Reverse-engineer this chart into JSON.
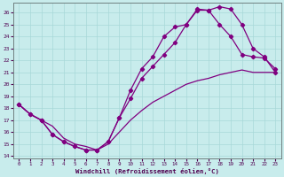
{
  "xlabel": "Windchill (Refroidissement éolien,°C)",
  "bg_color": "#c8ecec",
  "grid_color": "#a8d8d8",
  "line_color": "#800080",
  "xlim": [
    -0.5,
    23.5
  ],
  "ylim": [
    13.8,
    26.8
  ],
  "yticks": [
    14,
    15,
    16,
    17,
    18,
    19,
    20,
    21,
    22,
    23,
    24,
    25,
    26
  ],
  "xticks": [
    0,
    1,
    2,
    3,
    4,
    5,
    6,
    7,
    8,
    9,
    10,
    11,
    12,
    13,
    14,
    15,
    16,
    17,
    18,
    19,
    20,
    21,
    22,
    23
  ],
  "curve1_x": [
    0,
    1,
    2,
    3,
    4,
    5,
    6,
    7,
    8,
    9,
    10,
    11,
    12,
    13,
    14,
    15,
    16,
    17,
    18,
    19,
    20,
    21,
    22,
    23
  ],
  "curve1_y": [
    18.3,
    17.5,
    17.0,
    16.5,
    15.5,
    15.0,
    14.8,
    14.5,
    15.0,
    16.0,
    17.0,
    17.8,
    18.5,
    19.0,
    19.5,
    20.0,
    20.3,
    20.5,
    20.8,
    21.0,
    21.2,
    21.0,
    21.0,
    21.0
  ],
  "curve2_x": [
    0,
    1,
    2,
    3,
    4,
    5,
    6,
    7,
    8,
    9,
    10,
    11,
    12,
    13,
    14,
    15,
    16,
    17,
    18,
    19,
    20,
    21,
    22,
    23
  ],
  "curve2_y": [
    18.3,
    17.5,
    17.0,
    15.8,
    15.2,
    14.8,
    14.5,
    14.5,
    15.2,
    17.2,
    18.8,
    20.5,
    21.5,
    22.5,
    23.5,
    25.0,
    26.2,
    26.2,
    25.0,
    24.0,
    22.5,
    22.3,
    22.2,
    21.3
  ],
  "curve3_x": [
    0,
    1,
    2,
    3,
    4,
    5,
    6,
    7,
    8,
    9,
    10,
    11,
    12,
    13,
    14,
    15,
    16,
    17,
    18,
    19,
    20,
    21,
    22,
    23
  ],
  "curve3_y": [
    18.3,
    17.5,
    17.0,
    15.8,
    15.2,
    14.8,
    14.5,
    14.5,
    15.2,
    17.2,
    19.5,
    21.3,
    22.3,
    24.0,
    24.8,
    25.0,
    26.3,
    26.2,
    26.5,
    26.3,
    25.0,
    23.0,
    22.3,
    21.0
  ]
}
